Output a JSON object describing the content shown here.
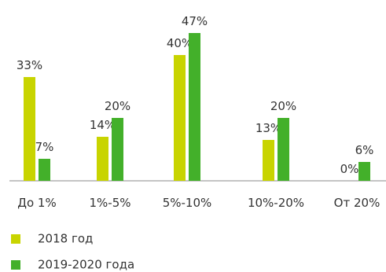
{
  "chart_data": {
    "type": "bar",
    "categories": [
      "До 1%",
      "1%-5%",
      "5%-10%",
      "10%-20%",
      "От 20%"
    ],
    "series": [
      {
        "name": "2018 год",
        "values": [
          33,
          14,
          40,
          13,
          0
        ],
        "labels": [
          "33%",
          "14%",
          "40%",
          "13%",
          "0%"
        ],
        "color": "#c8d400"
      },
      {
        "name": "2019-2020 года",
        "values": [
          7,
          20,
          47,
          20,
          6
        ],
        "labels": [
          "7%",
          "20%",
          "47%",
          "20%",
          "6%"
        ],
        "color": "#43b02a"
      }
    ],
    "ylim": [
      0,
      47
    ],
    "grid": false,
    "legend_position": "bottom-left"
  }
}
